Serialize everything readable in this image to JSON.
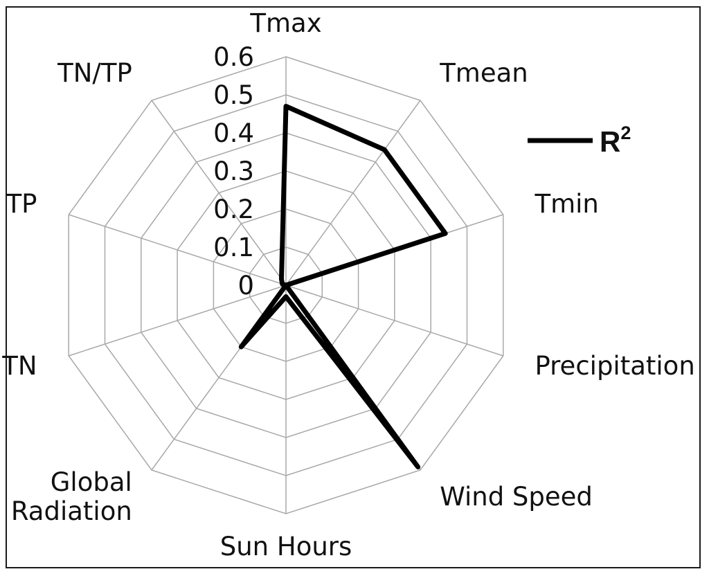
{
  "chart_data": {
    "type": "radar",
    "axes": [
      "Tmax",
      "Tmean",
      "Tmin",
      "Precipitation",
      "Wind Speed",
      "Sun Hours",
      "Global Radiation",
      "TN",
      "TP",
      "TN/TP"
    ],
    "axis_label_lines": [
      [
        "Tmax"
      ],
      [
        "Tmean"
      ],
      [
        "Tmin"
      ],
      [
        "Precipitation"
      ],
      [
        "Wind Speed"
      ],
      [
        "Sun Hours"
      ],
      [
        "Global",
        "Radiation"
      ],
      [
        "TN"
      ],
      [
        "TP"
      ],
      [
        "TN/TP"
      ]
    ],
    "ticks": [
      "0",
      "0.1",
      "0.2",
      "0.3",
      "0.4",
      "0.5",
      "0.6"
    ],
    "rlim": [
      0,
      0.6
    ],
    "series": [
      {
        "name": "R2",
        "values": [
          0.47,
          0.44,
          0.44,
          0.0,
          0.59,
          0.03,
          0.2,
          0.0,
          0.01,
          0.02
        ],
        "color": "#000000"
      }
    ],
    "legend": {
      "text": "R",
      "superscript": "2",
      "placement": "right"
    },
    "grid": true
  }
}
